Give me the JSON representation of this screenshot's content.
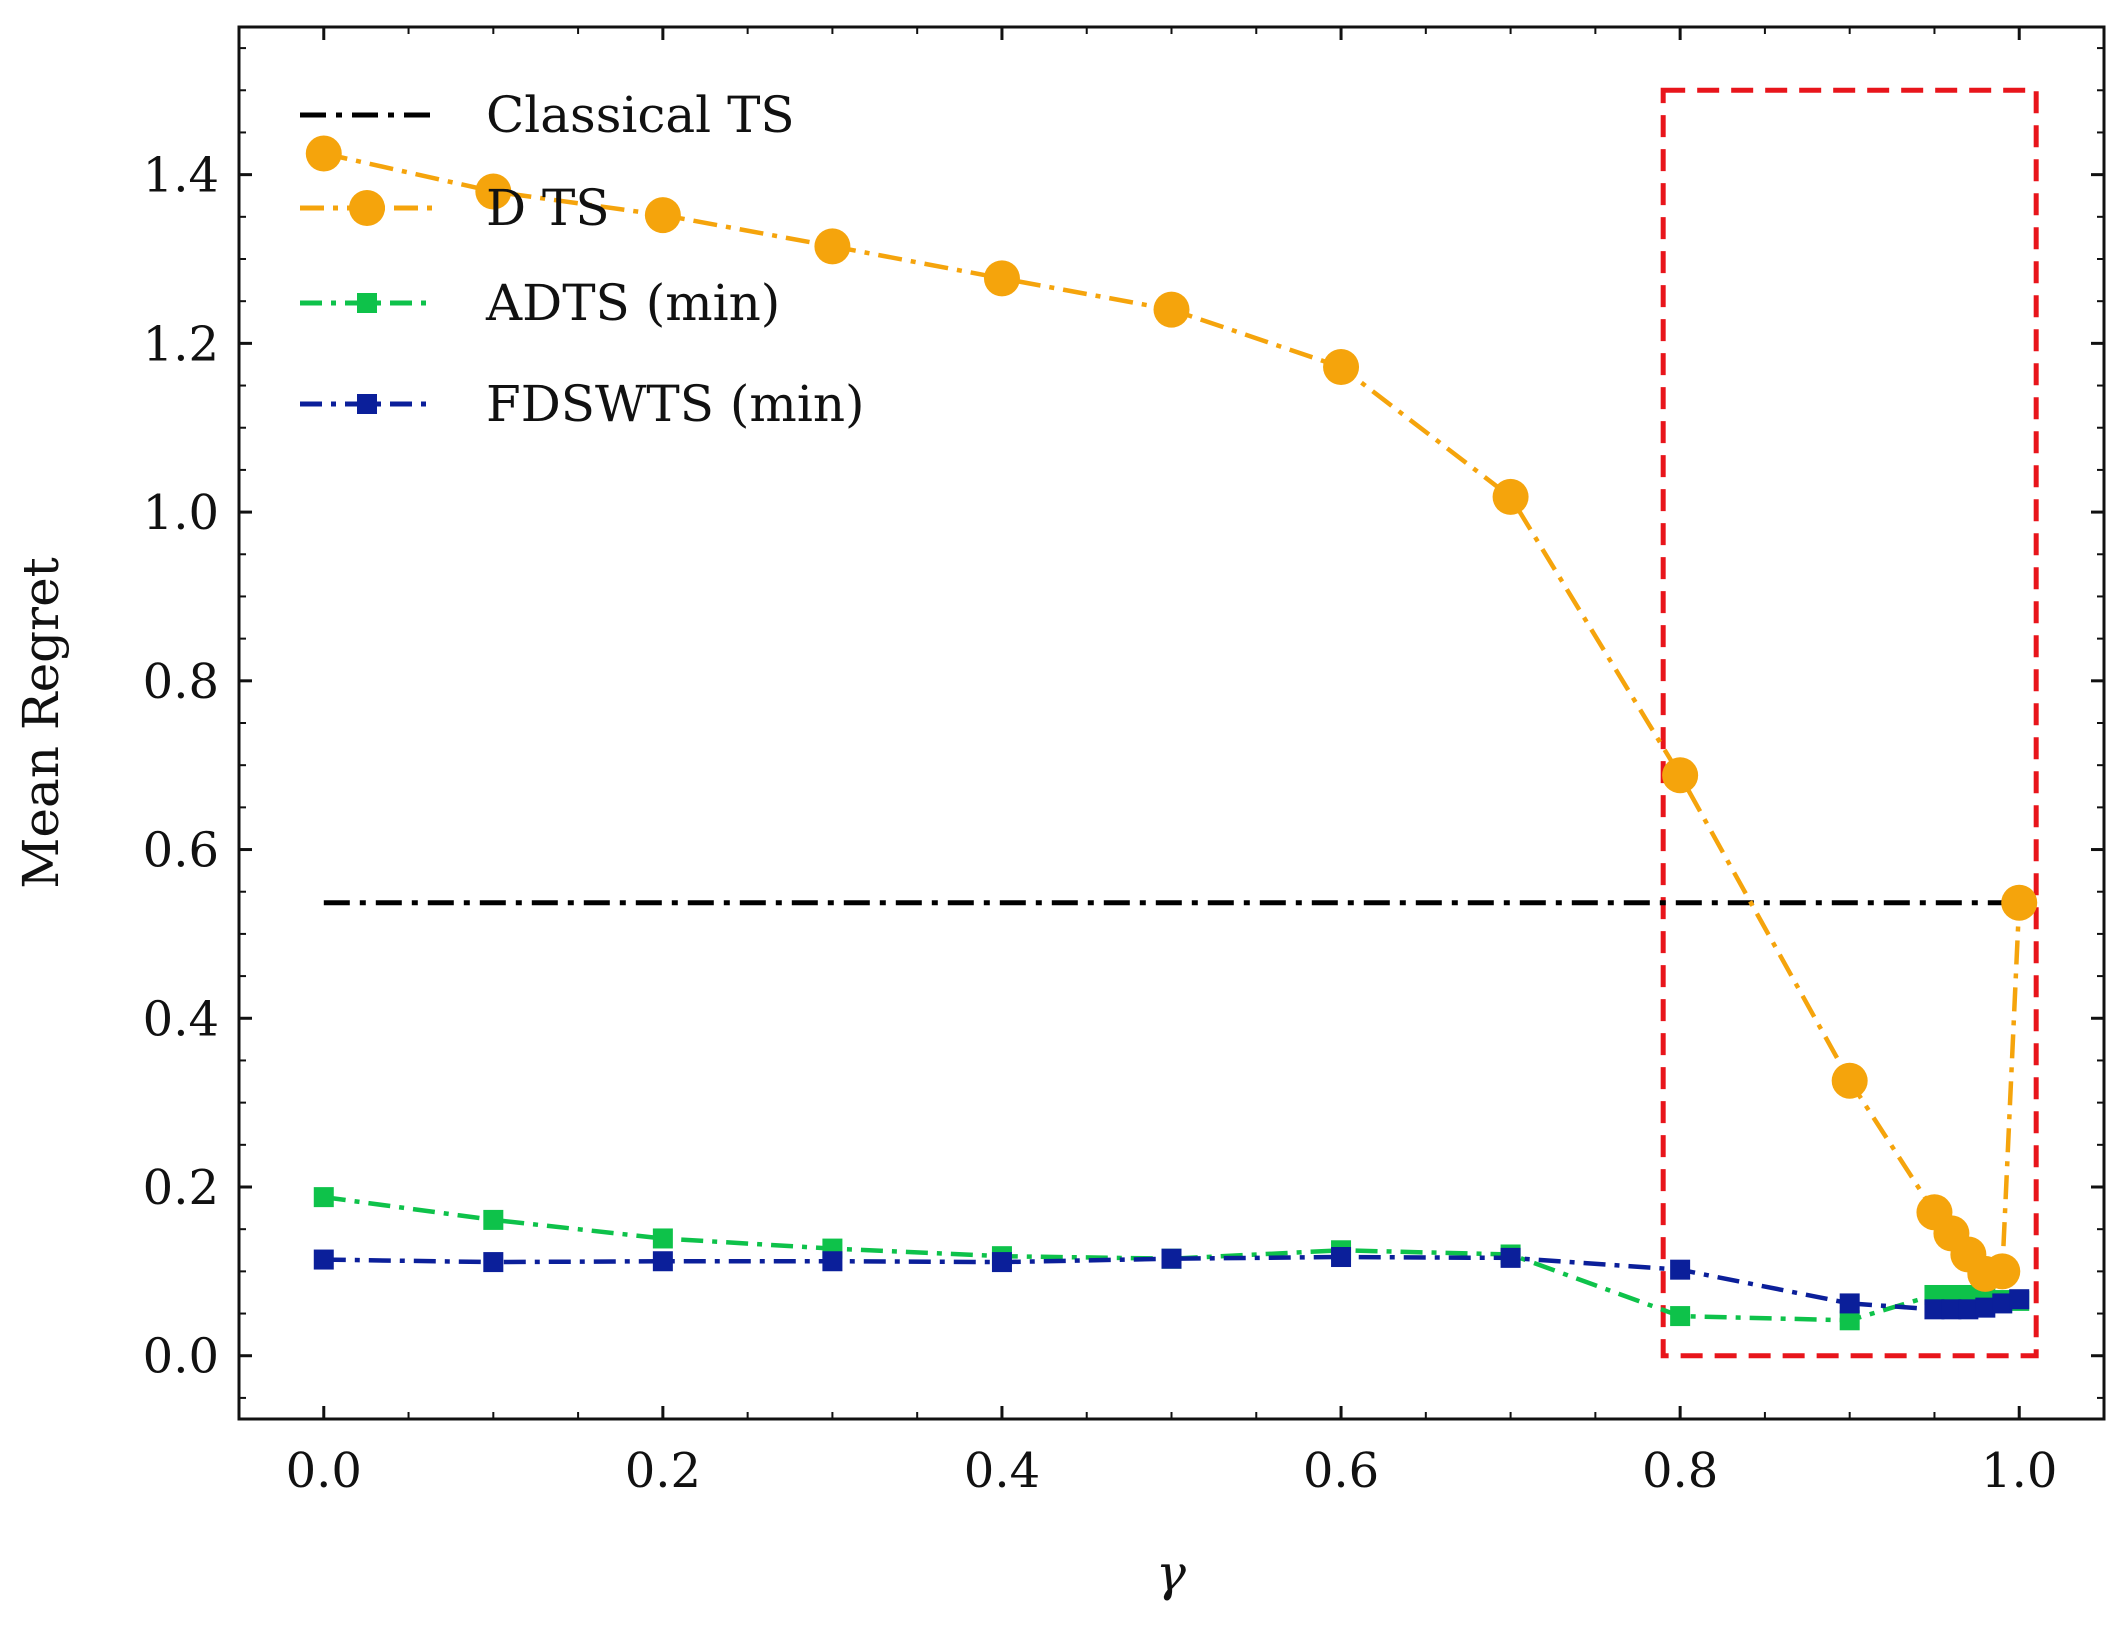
{
  "chart_data": {
    "type": "line",
    "title": "",
    "xlabel": "γ",
    "ylabel": "Mean Regret",
    "xlim": [
      -0.05,
      1.05
    ],
    "ylim": [
      -0.075,
      1.575
    ],
    "xticks": [
      0.0,
      0.2,
      0.4,
      0.6,
      0.8,
      1.0
    ],
    "yticks": [
      0.0,
      0.2,
      0.4,
      0.6,
      0.8,
      1.0,
      1.2,
      1.4
    ],
    "xtick_labels": [
      "0.0",
      "0.2",
      "0.4",
      "0.6",
      "0.8",
      "1.0"
    ],
    "ytick_labels": [
      "0.0",
      "0.2",
      "0.4",
      "0.6",
      "0.8",
      "1.0",
      "1.2",
      "1.4"
    ],
    "grid": false,
    "legend_position": "top-left",
    "series": [
      {
        "name": "Classical TS",
        "color": "#000000",
        "marker": "none",
        "x": [
          0.0,
          1.0
        ],
        "y": [
          0.537,
          0.537
        ]
      },
      {
        "name": "D TS",
        "color": "#f5a40c",
        "marker": "circle",
        "x": [
          0.0,
          0.1,
          0.2,
          0.3,
          0.4,
          0.5,
          0.6,
          0.7,
          0.8,
          0.9,
          0.95,
          0.96,
          0.97,
          0.98,
          0.99,
          1.0
        ],
        "y": [
          1.425,
          1.38,
          1.352,
          1.315,
          1.277,
          1.24,
          1.172,
          1.018,
          0.688,
          0.326,
          0.17,
          0.145,
          0.12,
          0.097,
          0.1,
          0.537
        ]
      },
      {
        "name": "ADTS (min)",
        "color": "#0ec24a",
        "marker": "square",
        "x": [
          0.0,
          0.1,
          0.2,
          0.3,
          0.4,
          0.5,
          0.6,
          0.7,
          0.8,
          0.9,
          0.95,
          0.96,
          0.97,
          0.98,
          0.99,
          1.0
        ],
        "y": [
          0.188,
          0.161,
          0.139,
          0.127,
          0.118,
          0.115,
          0.125,
          0.12,
          0.047,
          0.042,
          0.072,
          0.072,
          0.072,
          0.07,
          0.066,
          0.065
        ]
      },
      {
        "name": "FDSWTS (min)",
        "color": "#0b1f9a",
        "marker": "square",
        "x": [
          0.0,
          0.1,
          0.2,
          0.3,
          0.4,
          0.5,
          0.6,
          0.7,
          0.8,
          0.9,
          0.95,
          0.96,
          0.97,
          0.98,
          0.99,
          1.0
        ],
        "y": [
          0.114,
          0.111,
          0.112,
          0.112,
          0.111,
          0.115,
          0.117,
          0.116,
          0.102,
          0.062,
          0.055,
          0.055,
          0.055,
          0.057,
          0.062,
          0.067
        ]
      }
    ],
    "annotations": [
      {
        "type": "rectangle",
        "style": "dashed",
        "color": "#e8151b",
        "x0": 0.79,
        "x1": 1.01,
        "y0": 0.0,
        "y1": 1.5
      }
    ]
  }
}
